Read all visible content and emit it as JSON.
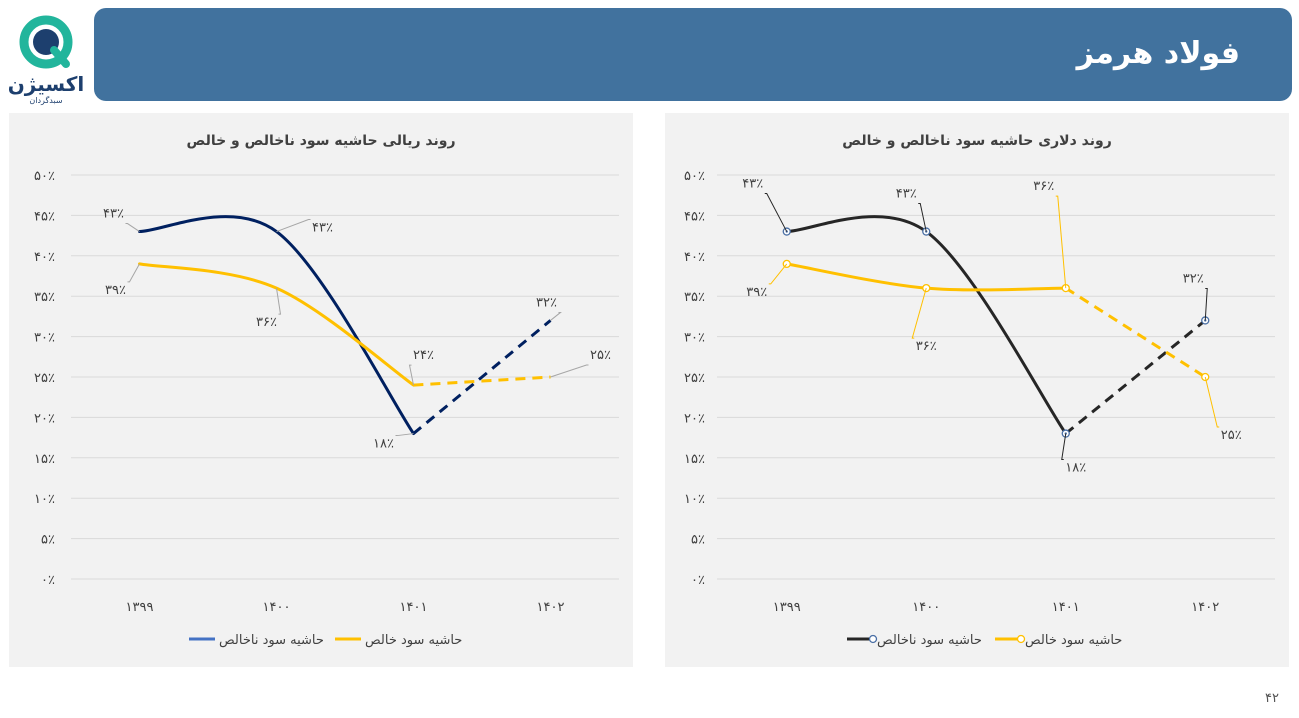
{
  "brand": {
    "name": "اکسیژن",
    "tagline": "سبدگردان",
    "accent": "#41729e",
    "logo_colors": [
      "#1d3f6e",
      "#22b59c"
    ]
  },
  "header": {
    "title": "فولاد هرمز"
  },
  "page_number": "۴۲",
  "chart_data": [
    {
      "type": "line",
      "title": "روند ریالی حاشیه سود ناخالص و خالص",
      "categories": [
        "۱۳۹۹",
        "۱۴۰۰",
        "۱۴۰۱",
        "۱۴۰۲"
      ],
      "y_ticks": [
        "۰٪",
        "۵٪",
        "۱۰٪",
        "۱۵٪",
        "۲۰٪",
        "۲۵٪",
        "۳۰٪",
        "۳۵٪",
        "۴۰٪",
        "۴۵٪",
        "۵۰٪"
      ],
      "ylim": [
        0,
        50
      ],
      "grid": true,
      "legend_position": "bottom",
      "forecast_from_index": 2,
      "series": [
        {
          "name": "حاشیه سود ناخالص",
          "values": [
            43,
            43,
            18,
            32
          ],
          "labels": [
            "۴۳٪",
            "۴۳٪",
            "۱۸٪",
            "۳۲٪"
          ],
          "color": "#002060",
          "legend_color": "#4472c4",
          "markers": false
        },
        {
          "name": "حاشیه سود خالص",
          "values": [
            39,
            36,
            24,
            25
          ],
          "labels": [
            "۳۹٪",
            "۳۶٪",
            "۲۴٪",
            "۲۵٪"
          ],
          "color": "#ffc000",
          "legend_color": "#ffc000",
          "markers": false
        }
      ]
    },
    {
      "type": "line",
      "title": "روند دلاری حاشیه سود ناخالص و خالص",
      "categories": [
        "۱۳۹۹",
        "۱۴۰۰",
        "۱۴۰۱",
        "۱۴۰۲"
      ],
      "y_ticks": [
        "۰٪",
        "۵٪",
        "۱۰٪",
        "۱۵٪",
        "۲۰٪",
        "۲۵٪",
        "۳۰٪",
        "۳۵٪",
        "۴۰٪",
        "۴۵٪",
        "۵۰٪"
      ],
      "ylim": [
        0,
        50
      ],
      "grid": true,
      "legend_position": "bottom",
      "forecast_from_index": 2,
      "series": [
        {
          "name": "حاشیه سود ناخالص",
          "values": [
            43,
            43,
            18,
            32
          ],
          "labels": [
            "۴۳٪",
            "۴۳٪",
            "۱۸٪",
            "۳۲٪"
          ],
          "color": "#262626",
          "legend_color": "#262626",
          "markers": true
        },
        {
          "name": "حاشیه سود خالص",
          "values": [
            39,
            36,
            36,
            25
          ],
          "labels": [
            "۳۹٪",
            "۳۶٪",
            "۳۶٪",
            "۲۵٪"
          ],
          "color": "#ffc000",
          "legend_color": "#ffc000",
          "markers": true
        }
      ]
    }
  ]
}
